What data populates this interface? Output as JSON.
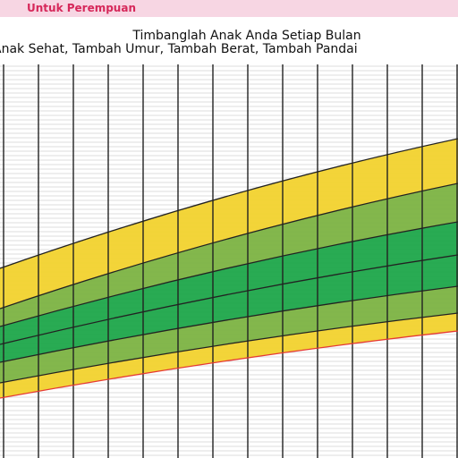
{
  "header": {
    "title": "Untuk Perempuan"
  },
  "chart": {
    "title": "Timbanglah Anak Anda Setiap Bulan",
    "subtitle": "Anak Sehat, Tambah Umur, Tambah Berat, Tambah Pandai"
  }
}
